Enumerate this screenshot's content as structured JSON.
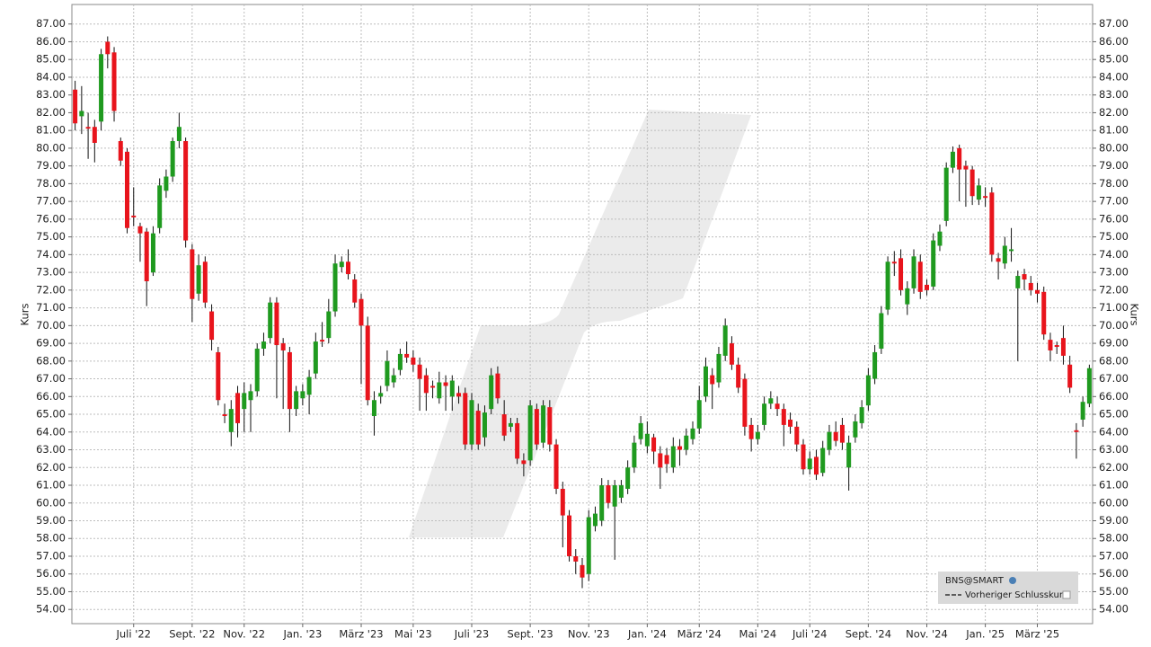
{
  "chart_data": {
    "type": "candlestick",
    "y_label": "Kurs",
    "reference_line_label": "Vorheriger Schlusskurs",
    "up_color": "#1f9a1f",
    "down_color": "#e8141c",
    "ylim": [
      53.2,
      88.1
    ],
    "yticks": [
      {
        "value": 54,
        "label": "54.00"
      },
      {
        "value": 55,
        "label": "55.00"
      },
      {
        "value": 56,
        "label": "56.00"
      },
      {
        "value": 57,
        "label": "57.00"
      },
      {
        "value": 58,
        "label": "58.00"
      },
      {
        "value": 59,
        "label": "59.00"
      },
      {
        "value": 60,
        "label": "60.00"
      },
      {
        "value": 61,
        "label": "61.00"
      },
      {
        "value": 62,
        "label": "62.00"
      },
      {
        "value": 63,
        "label": "63.00"
      },
      {
        "value": 64,
        "label": "64.00"
      },
      {
        "value": 65,
        "label": "65.00"
      },
      {
        "value": 66,
        "label": "66.00"
      },
      {
        "value": 67,
        "label": "67.00"
      },
      {
        "value": 68,
        "label": "68.00"
      },
      {
        "value": 69,
        "label": "69.00"
      },
      {
        "value": 70,
        "label": "70.00"
      },
      {
        "value": 71,
        "label": "71.00"
      },
      {
        "value": 72,
        "label": "72.00"
      },
      {
        "value": 73,
        "label": "73.00"
      },
      {
        "value": 74,
        "label": "74.00"
      },
      {
        "value": 75,
        "label": "75.00"
      },
      {
        "value": 76,
        "label": "76.00"
      },
      {
        "value": 77,
        "label": "77.00"
      },
      {
        "value": 78,
        "label": "78.00"
      },
      {
        "value": 79,
        "label": "79.00"
      },
      {
        "value": 80,
        "label": "80.00"
      },
      {
        "value": 81,
        "label": "81.00"
      },
      {
        "value": 82,
        "label": "82.00"
      },
      {
        "value": 83,
        "label": "83.00"
      },
      {
        "value": 84,
        "label": "84.00"
      },
      {
        "value": 85,
        "label": "85.00"
      },
      {
        "value": 86,
        "label": "86.00"
      },
      {
        "value": 87,
        "label": "87.00"
      }
    ],
    "grid": true,
    "categories": [
      null,
      null,
      null,
      null,
      null,
      null,
      null,
      null,
      null,
      "Juli '22",
      null,
      null,
      null,
      null,
      null,
      null,
      null,
      null,
      "Sept. '22",
      null,
      null,
      null,
      null,
      null,
      null,
      null,
      "Nov. '22",
      null,
      null,
      null,
      null,
      null,
      null,
      null,
      null,
      "Jan. '23",
      null,
      null,
      null,
      null,
      null,
      null,
      null,
      null,
      "März '23",
      null,
      null,
      null,
      null,
      null,
      null,
      null,
      "Mai '23",
      null,
      null,
      null,
      null,
      null,
      null,
      null,
      null,
      "Juli '23",
      null,
      null,
      null,
      null,
      null,
      null,
      null,
      null,
      "Sept. '23",
      null,
      null,
      null,
      null,
      null,
      null,
      null,
      null,
      "Nov. '23",
      null,
      null,
      null,
      null,
      null,
      null,
      null,
      null,
      "Jan. '24",
      null,
      null,
      null,
      null,
      null,
      null,
      null,
      "März '24",
      null,
      null,
      null,
      null,
      null,
      null,
      null,
      null,
      "Mai '24",
      null,
      null,
      null,
      null,
      null,
      null,
      null,
      "Juli '24",
      null,
      null,
      null,
      null,
      null,
      null,
      null,
      null,
      "Sept. '24",
      null,
      null,
      null,
      null,
      null,
      null,
      null,
      null,
      "Nov. '24",
      null,
      null,
      null,
      null,
      null,
      null,
      null,
      null,
      "Jan. '25",
      null,
      null,
      null,
      null,
      null,
      null,
      null,
      "März '25",
      null,
      null,
      null,
      null,
      null,
      null,
      null,
      null
    ],
    "series": [
      {
        "name": "BNS@SMART",
        "open": [
          83.3,
          81.8,
          81.2,
          81.2,
          81.5,
          86.0,
          85.4,
          80.4,
          79.8,
          76.2,
          75.6,
          75.3,
          73.0,
          75.5,
          77.6,
          78.4,
          80.4,
          80.4,
          74.3,
          71.8,
          73.6,
          70.8,
          68.5,
          65.0,
          64.0,
          66.2,
          65.3,
          65.8,
          66.3,
          68.7,
          69.3,
          71.3,
          69.0,
          68.5,
          65.3,
          65.9,
          66.1,
          67.3,
          69.2,
          69.3,
          70.8,
          73.3,
          73.6,
          72.6,
          71.5,
          70.0,
          64.9,
          66.0,
          66.6,
          66.8,
          67.5,
          68.4,
          68.2,
          67.8,
          67.2,
          66.6,
          65.9,
          66.8,
          66.0,
          66.2,
          66.2,
          63.3,
          65.2,
          63.7,
          65.3,
          67.3,
          65.0,
          64.3,
          64.5,
          62.4,
          62.4,
          65.3,
          63.4,
          65.4,
          63.3,
          60.8,
          59.3,
          57.0,
          56.5,
          56.0,
          58.7,
          59.0,
          61.0,
          59.8,
          60.3,
          60.8,
          62.0,
          63.6,
          63.2,
          63.7,
          62.8,
          62.7,
          62.0,
          63.2,
          63.0,
          63.6,
          64.2,
          66.0,
          67.2,
          66.8,
          68.3,
          69.0,
          67.8,
          67.0,
          64.4,
          63.6,
          64.4,
          65.6,
          65.6,
          65.3,
          64.7,
          64.3,
          63.3,
          61.9,
          62.6,
          61.7,
          63.0,
          64.0,
          64.4,
          62.0,
          63.7,
          64.5,
          65.5,
          67.0,
          68.7,
          70.9,
          73.6,
          73.8,
          71.2,
          72.1,
          73.6,
          72.3,
          72.2,
          74.5,
          75.9,
          78.9,
          80.0,
          79.0,
          78.8,
          77.1,
          77.3,
          77.5,
          73.8,
          73.5,
          74.2,
          72.1,
          72.9,
          72.4,
          72.0,
          71.9,
          69.2,
          68.9,
          69.3,
          67.8,
          64.1,
          64.7,
          65.6
        ],
        "high": [
          83.8,
          83.5,
          82.0,
          81.6,
          85.6,
          86.3,
          85.7,
          80.6,
          80.0,
          77.8,
          75.8,
          75.5,
          75.6,
          78.3,
          78.8,
          80.6,
          82.0,
          80.6,
          74.6,
          74.0,
          73.9,
          71.2,
          68.8,
          65.6,
          65.8,
          66.6,
          66.8,
          66.7,
          69.0,
          69.6,
          71.6,
          71.6,
          69.3,
          68.8,
          66.6,
          66.7,
          67.5,
          69.6,
          70.2,
          71.5,
          74.0,
          73.9,
          74.3,
          72.9,
          71.8,
          70.5,
          66.3,
          66.6,
          68.6,
          67.6,
          68.7,
          69.1,
          68.6,
          68.2,
          67.6,
          66.9,
          67.4,
          67.2,
          67.2,
          66.6,
          66.5,
          66.2,
          65.6,
          65.5,
          67.6,
          67.7,
          65.8,
          64.8,
          64.8,
          62.8,
          65.8,
          65.6,
          65.8,
          65.8,
          63.6,
          61.2,
          59.6,
          57.4,
          56.9,
          59.6,
          59.8,
          61.4,
          61.3,
          61.3,
          61.3,
          62.4,
          63.8,
          64.9,
          64.6,
          63.9,
          63.2,
          63.1,
          63.7,
          63.6,
          64.2,
          64.6,
          66.6,
          68.2,
          67.6,
          68.8,
          70.4,
          69.4,
          68.2,
          67.3,
          64.8,
          64.4,
          66.0,
          66.3,
          66.0,
          65.6,
          65.1,
          64.6,
          63.6,
          62.9,
          63.0,
          63.5,
          64.4,
          64.6,
          64.8,
          63.8,
          65.0,
          65.8,
          67.6,
          68.9,
          71.1,
          73.9,
          74.2,
          74.3,
          72.5,
          74.3,
          74.0,
          72.6,
          75.2,
          75.7,
          79.2,
          80.1,
          80.2,
          79.3,
          79.0,
          78.3,
          77.8,
          77.8,
          74.1,
          75.0,
          75.5,
          73.1,
          73.2,
          72.8,
          72.4,
          72.2,
          69.6,
          69.1,
          70.0,
          68.3,
          64.5,
          66.0,
          67.8
        ],
        "low": [
          81.0,
          80.8,
          79.4,
          79.2,
          81.0,
          84.5,
          81.5,
          79.0,
          75.2,
          75.6,
          73.6,
          71.1,
          72.8,
          75.2,
          77.2,
          78.1,
          80.0,
          74.4,
          70.2,
          71.4,
          71.0,
          68.6,
          65.5,
          64.5,
          63.2,
          63.7,
          64.0,
          64.0,
          66.0,
          68.3,
          69.0,
          65.9,
          65.3,
          64.0,
          64.9,
          65.5,
          65.0,
          67.0,
          68.8,
          69.0,
          70.5,
          73.0,
          72.6,
          71.0,
          66.7,
          65.5,
          63.8,
          65.6,
          66.3,
          66.5,
          67.2,
          67.9,
          67.4,
          65.2,
          65.2,
          65.9,
          65.6,
          65.2,
          65.2,
          65.6,
          63.0,
          63.0,
          63.0,
          63.2,
          65.0,
          65.6,
          63.5,
          64.0,
          62.2,
          61.5,
          62.1,
          63.0,
          63.1,
          62.9,
          60.5,
          57.5,
          56.7,
          56.0,
          55.2,
          55.6,
          58.4,
          58.7,
          59.7,
          56.8,
          60.0,
          60.5,
          61.7,
          63.3,
          62.8,
          62.2,
          60.8,
          61.7,
          61.7,
          62.1,
          62.7,
          63.3,
          63.9,
          65.7,
          65.3,
          66.5,
          68.0,
          67.5,
          66.2,
          63.8,
          62.9,
          63.3,
          64.1,
          65.3,
          64.9,
          63.2,
          63.9,
          62.9,
          61.6,
          61.6,
          61.3,
          61.5,
          62.7,
          63.2,
          63.0,
          60.7,
          63.4,
          64.2,
          65.2,
          66.7,
          68.4,
          70.6,
          72.8,
          71.7,
          70.6,
          71.8,
          71.5,
          71.7,
          72.0,
          74.2,
          75.6,
          78.6,
          77.0,
          76.7,
          76.8,
          76.8,
          76.7,
          73.6,
          72.6,
          73.2,
          73.6,
          68.0,
          72.0,
          71.7,
          71.3,
          69.2,
          68.0,
          68.4,
          67.8,
          66.2,
          62.5,
          64.3,
          65.4
        ],
        "close": [
          81.4,
          82.1,
          81.1,
          80.3,
          85.3,
          85.3,
          82.1,
          79.3,
          75.5,
          76.1,
          75.2,
          72.5,
          75.2,
          77.9,
          78.4,
          80.4,
          81.2,
          74.8,
          71.5,
          73.4,
          71.3,
          69.2,
          65.8,
          64.9,
          65.3,
          64.5,
          66.2,
          66.3,
          68.7,
          69.1,
          71.3,
          68.9,
          68.6,
          65.3,
          66.3,
          66.3,
          67.1,
          69.1,
          69.1,
          70.8,
          73.5,
          73.6,
          72.9,
          71.3,
          70.0,
          65.8,
          65.8,
          66.2,
          68.0,
          67.2,
          68.4,
          68.2,
          67.8,
          67.0,
          66.2,
          66.5,
          66.8,
          66.6,
          66.9,
          66.0,
          63.3,
          65.8,
          63.3,
          65.1,
          67.2,
          65.9,
          63.8,
          64.5,
          62.5,
          62.2,
          65.5,
          63.3,
          65.5,
          63.3,
          60.8,
          59.3,
          57.0,
          56.7,
          55.8,
          59.2,
          59.4,
          61.0,
          60.0,
          61.0,
          61.0,
          62.0,
          63.4,
          64.5,
          63.9,
          62.9,
          62.0,
          62.2,
          63.2,
          63.0,
          63.8,
          64.2,
          65.8,
          67.7,
          66.7,
          68.4,
          70.0,
          67.8,
          66.5,
          64.3,
          63.6,
          64.0,
          65.6,
          65.9,
          65.3,
          64.4,
          64.3,
          63.3,
          61.9,
          62.5,
          61.6,
          63.1,
          64.0,
          63.5,
          63.4,
          63.4,
          64.6,
          65.4,
          67.2,
          68.5,
          70.7,
          73.6,
          73.5,
          72.0,
          72.1,
          73.9,
          71.9,
          72.0,
          74.8,
          75.3,
          78.9,
          79.8,
          78.8,
          78.8,
          77.3,
          77.9,
          77.2,
          74.0,
          73.6,
          74.5,
          74.3,
          72.8,
          72.6,
          72.0,
          71.8,
          69.5,
          68.6,
          68.8,
          68.3,
          66.5,
          64.0,
          65.7,
          67.6
        ]
      }
    ]
  }
}
